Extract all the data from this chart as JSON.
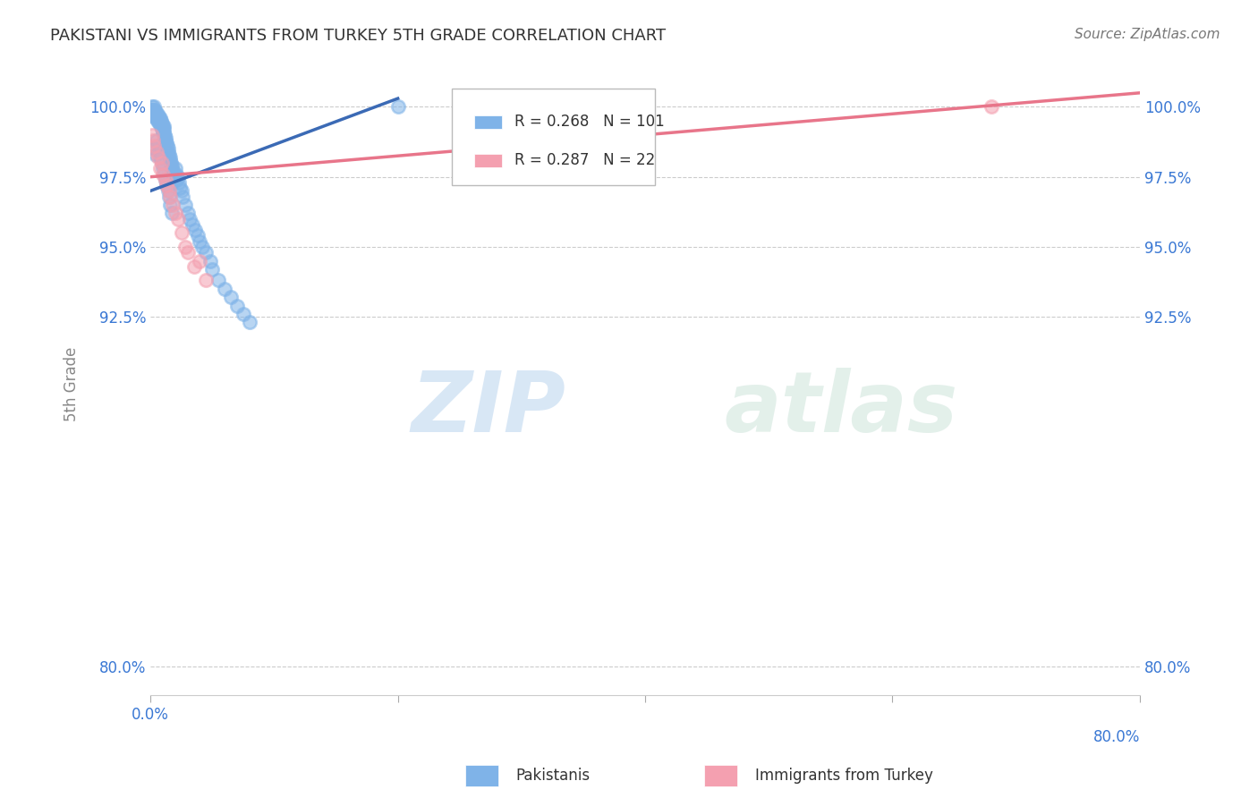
{
  "title": "PAKISTANI VS IMMIGRANTS FROM TURKEY 5TH GRADE CORRELATION CHART",
  "source": "Source: ZipAtlas.com",
  "ylabel": "5th Grade",
  "yaxis_labels": [
    "80.0%",
    "92.5%",
    "95.0%",
    "97.5%",
    "100.0%"
  ],
  "yaxis_values": [
    80.0,
    92.5,
    95.0,
    97.5,
    100.0
  ],
  "xmin": 0.0,
  "xmax": 80.0,
  "ymin": 79.0,
  "ymax": 101.2,
  "blue_R": 0.268,
  "blue_N": 101,
  "pink_R": 0.287,
  "pink_N": 22,
  "blue_color": "#7FB3E8",
  "pink_color": "#F4A0B0",
  "blue_line_color": "#3B6AB5",
  "pink_line_color": "#E8758A",
  "legend_label_blue": "Pakistanis",
  "legend_label_pink": "Immigrants from Turkey",
  "watermark_zip": "ZIP",
  "watermark_atlas": "atlas",
  "blue_line_x0": 0.0,
  "blue_line_y0": 97.0,
  "blue_line_x1": 20.0,
  "blue_line_y1": 100.3,
  "pink_line_x0": 0.0,
  "pink_line_y0": 97.5,
  "pink_line_x1": 80.0,
  "pink_line_y1": 100.5,
  "blue_scatter_x": [
    0.05,
    0.08,
    0.1,
    0.12,
    0.15,
    0.18,
    0.2,
    0.22,
    0.25,
    0.28,
    0.3,
    0.32,
    0.35,
    0.38,
    0.4,
    0.42,
    0.45,
    0.48,
    0.5,
    0.52,
    0.55,
    0.58,
    0.6,
    0.62,
    0.65,
    0.68,
    0.7,
    0.72,
    0.75,
    0.78,
    0.8,
    0.82,
    0.85,
    0.88,
    0.9,
    0.92,
    0.95,
    0.98,
    1.0,
    1.02,
    1.05,
    1.08,
    1.1,
    1.15,
    1.2,
    1.25,
    1.3,
    1.35,
    1.4,
    1.45,
    1.5,
    1.55,
    1.6,
    1.65,
    1.7,
    1.75,
    1.8,
    1.85,
    1.9,
    1.95,
    2.0,
    2.05,
    2.1,
    2.2,
    2.3,
    2.4,
    2.5,
    2.6,
    2.8,
    3.0,
    3.2,
    3.4,
    3.6,
    3.8,
    4.0,
    4.2,
    4.5,
    4.8,
    5.0,
    5.5,
    6.0,
    6.5,
    7.0,
    7.5,
    8.0,
    0.3,
    0.4,
    0.5,
    0.6,
    0.7,
    0.8,
    0.9,
    1.0,
    1.1,
    1.2,
    1.3,
    1.4,
    1.5,
    1.6,
    1.7,
    20.0
  ],
  "blue_scatter_y": [
    99.9,
    99.8,
    100.0,
    99.9,
    99.8,
    99.7,
    99.9,
    99.8,
    99.9,
    100.0,
    99.8,
    99.7,
    99.9,
    99.8,
    99.7,
    99.6,
    99.8,
    99.7,
    99.8,
    99.6,
    99.5,
    99.7,
    99.6,
    99.5,
    99.7,
    99.6,
    99.5,
    99.4,
    99.6,
    99.5,
    99.4,
    99.3,
    99.5,
    99.4,
    99.3,
    99.2,
    99.4,
    99.3,
    99.2,
    99.1,
    99.3,
    99.2,
    99.1,
    99.0,
    98.9,
    98.8,
    98.7,
    98.6,
    98.5,
    98.4,
    98.3,
    98.2,
    98.1,
    98.0,
    97.9,
    97.8,
    97.7,
    97.6,
    97.5,
    97.4,
    97.8,
    97.6,
    97.4,
    97.5,
    97.3,
    97.1,
    97.0,
    96.8,
    96.5,
    96.2,
    96.0,
    95.8,
    95.6,
    95.4,
    95.2,
    95.0,
    94.8,
    94.5,
    94.2,
    93.8,
    93.5,
    93.2,
    92.9,
    92.6,
    92.3,
    98.5,
    98.3,
    98.8,
    98.6,
    98.4,
    98.2,
    98.0,
    97.8,
    97.6,
    97.4,
    97.2,
    97.0,
    96.8,
    96.5,
    96.2,
    100.0
  ],
  "pink_scatter_x": [
    0.1,
    0.2,
    0.3,
    0.5,
    0.6,
    0.8,
    0.9,
    1.0,
    1.2,
    1.3,
    1.5,
    1.6,
    1.8,
    2.0,
    2.2,
    2.5,
    2.8,
    3.0,
    3.5,
    4.0,
    4.5,
    68.0
  ],
  "pink_scatter_y": [
    99.0,
    98.8,
    98.6,
    98.4,
    98.2,
    97.8,
    98.0,
    97.6,
    97.4,
    97.2,
    97.0,
    96.8,
    96.5,
    96.2,
    96.0,
    95.5,
    95.0,
    94.8,
    94.3,
    94.5,
    93.8,
    100.0
  ]
}
